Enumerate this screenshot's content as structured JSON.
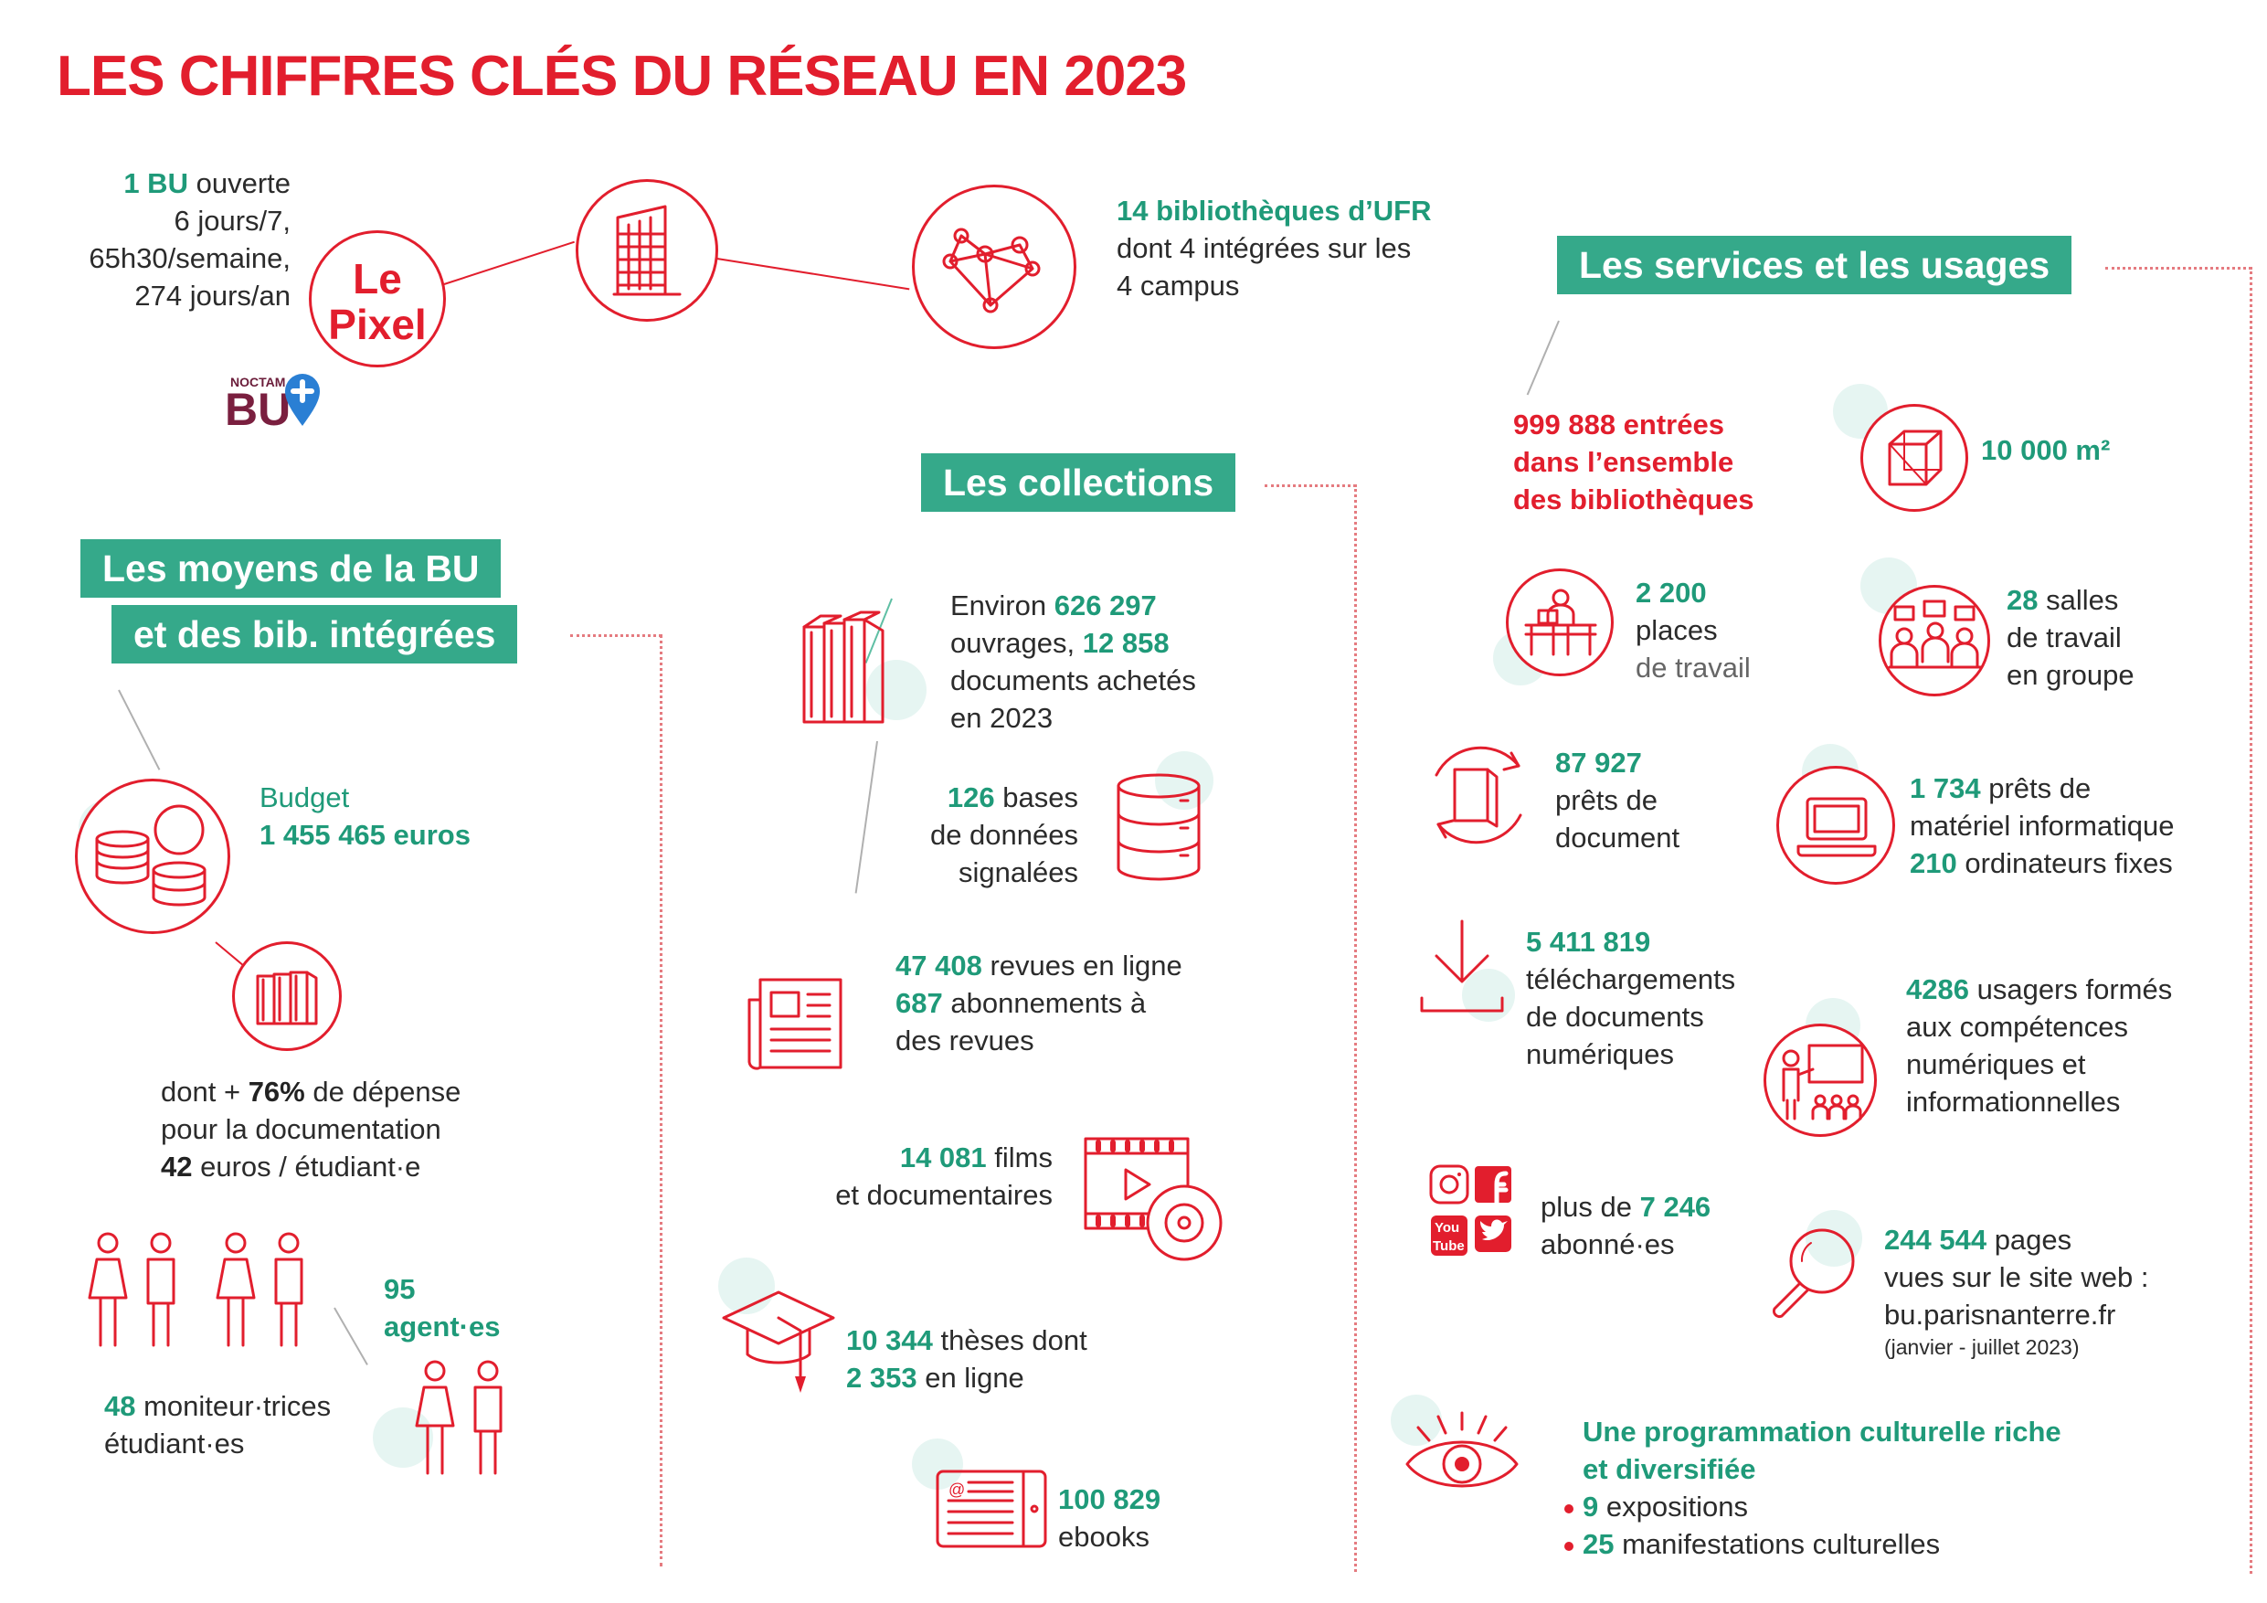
{
  "title": "LES CHIFFRES CLÉS DU RÉSEAU EN 2023",
  "header": {
    "bu_count": "1 BU",
    "bu_open": "ouverte",
    "bu_line2": "6 jours/7,",
    "bu_line3": "65h30/semaine,",
    "bu_line4": "274 jours/an",
    "pixel_line1": "Le",
    "pixel_line2": "Pixel",
    "noctam_small": "NOCTAM",
    "noctam_big": "BU",
    "ufr_count": "14 bibliothèques d’UFR",
    "ufr_line2": "dont 4 intégrées sur les",
    "ufr_line3": "4 campus"
  },
  "banners": {
    "moyens_line1": "Les moyens de la BU",
    "moyens_line2": "et des bib. intégrées",
    "collections": "Les collections",
    "services": "Les services et les usages"
  },
  "moyens": {
    "budget_label": "Budget",
    "budget_value": "1 455 465 euros",
    "doc_prefix": "dont +",
    "doc_pct": "76%",
    "doc_suffix": "de dépense",
    "doc_line2": "pour la documentation",
    "per_student_value": "42",
    "per_student_suffix": "euros / étudiant·e",
    "agents_value": "95",
    "agents_label": "agent·es",
    "moniteurs_value": "48",
    "moniteurs_label": "moniteur·trices",
    "moniteurs_line2": "étudiant·es"
  },
  "collections": {
    "ouvrages_prefix": "Environ",
    "ouvrages_value": "626 297",
    "ouvrages_label": "ouvrages,",
    "achetes_value": "12 858",
    "achetes_line2": "documents achetés",
    "achetes_line3": "en 2023",
    "bases_value": "126",
    "bases_label": "bases",
    "bases_line2": "de données",
    "bases_line3": "signalées",
    "revues_value": "47 408",
    "revues_label": "revues en ligne",
    "abos_value": "687",
    "abos_label": "abonnements à",
    "abos_line2": "des revues",
    "films_value": "14 081",
    "films_label": "films",
    "films_line2": "et documentaires",
    "theses_value": "10 344",
    "theses_label": "thèses dont",
    "theses_online_value": "2 353",
    "theses_online_label": "en ligne",
    "ebooks_value": "100 829",
    "ebooks_label": "ebooks"
  },
  "services": {
    "entrees_line1": "999 888 entrées",
    "entrees_line2": "dans l’ensemble",
    "entrees_line3": "des bibliothèques",
    "surface": "10 000 m²",
    "places_value": "2 200",
    "places_line2": "places",
    "places_line3": "de travail",
    "salles_value": "28",
    "salles_label": "salles",
    "salles_line2": "de travail",
    "salles_line3": "en groupe",
    "prets_value": "87 927",
    "prets_line2": "prêts de",
    "prets_line3": "document",
    "materiel_value": "1 734",
    "materiel_label": "prêts de",
    "materiel_line2": "matériel informatique",
    "ordis_value": "210",
    "ordis_label": "ordinateurs fixes",
    "telech_value": "5 411 819",
    "telech_line2": "téléchargements",
    "telech_line3": "de documents",
    "telech_line4": "numériques",
    "formes_value": "4286",
    "formes_label": "usagers formés",
    "formes_line2": "aux compétences",
    "formes_line3": "numériques et",
    "formes_line4": "informationnelles",
    "abonnes_prefix": "plus de",
    "abonnes_value": "7 246",
    "abonnes_line2": "abonné·es",
    "pages_value": "244 544",
    "pages_label": "pages",
    "pages_line2": "vues sur le site web :",
    "pages_line3": "bu.parisnanterre.fr",
    "pages_note": "(janvier - juillet 2023)",
    "culture_line1": "Une programmation culturelle riche",
    "culture_line2": "et diversifiée",
    "expo_value": "9",
    "expo_label": "expositions",
    "manif_value": "25",
    "manif_label": "manifestations culturelles"
  },
  "colors": {
    "red": "#e21e2d",
    "green": "#35a98a",
    "dark_green": "#1f9a79",
    "blob": "#dcf1ec"
  },
  "icons": [
    "building-icon",
    "network-icon",
    "coins-icon",
    "books-icon",
    "people-icon",
    "database-icon",
    "newspaper-icon",
    "film-icon",
    "graduation-cap-icon",
    "ebook-icon",
    "cube-icon",
    "desk-icon",
    "group-icon",
    "book-cycle-icon",
    "laptop-icon",
    "download-icon",
    "teacher-icon",
    "social-icon",
    "magnifier-icon",
    "eye-icon"
  ]
}
